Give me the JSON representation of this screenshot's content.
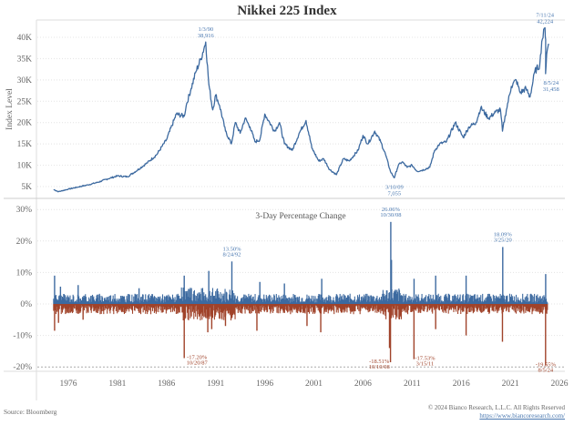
{
  "chart_data": [
    {
      "type": "line",
      "title": "Nikkei 225 Index",
      "ylabel": "Index Level",
      "xlabel": "",
      "xlim": [
        1973,
        2026
      ],
      "ylim": [
        2500,
        42500
      ],
      "y_ticks": [
        "5K",
        "10K",
        "15K",
        "20K",
        "25K",
        "30K",
        "35K",
        "40K"
      ],
      "y_tick_values": [
        5000,
        10000,
        15000,
        20000,
        25000,
        30000,
        35000,
        40000
      ],
      "grid": true,
      "color": "#3d6aa0",
      "series": [
        {
          "name": "Nikkei 225",
          "x": [
            1974.5,
            1975.0,
            1976.0,
            1977.0,
            1978.0,
            1979.0,
            1980.0,
            1981.0,
            1982.0,
            1983.0,
            1984.0,
            1985.0,
            1986.0,
            1987.0,
            1987.8,
            1988.0,
            1988.5,
            1989.0,
            1989.5,
            1989.99,
            1990.3,
            1990.7,
            1991.0,
            1991.4,
            1992.0,
            1992.6,
            1993.0,
            1993.5,
            1994.0,
            1994.5,
            1995.0,
            1995.5,
            1996.0,
            1996.5,
            1997.0,
            1997.5,
            1998.0,
            1998.8,
            1999.5,
            2000.2,
            2000.8,
            2001.5,
            2002.0,
            2002.6,
            2003.3,
            2004.0,
            2004.6,
            2005.5,
            2006.0,
            2006.5,
            2007.2,
            2007.8,
            2008.3,
            2008.8,
            2009.19,
            2009.6,
            2010.0,
            2010.5,
            2011.0,
            2011.5,
            2012.0,
            2012.8,
            2013.3,
            2013.8,
            2014.5,
            2015.4,
            2016.2,
            2016.8,
            2017.5,
            2018.0,
            2018.8,
            2019.5,
            2020.0,
            2020.2,
            2020.6,
            2021.1,
            2021.6,
            2022.0,
            2022.6,
            2023.0,
            2023.5,
            2024.0,
            2024.2,
            2024.53,
            2024.6,
            2024.59,
            2024.7,
            2024.9
          ],
          "values": [
            4300,
            3800,
            4400,
            4900,
            5400,
            6000,
            6800,
            7500,
            7300,
            8800,
            10500,
            12500,
            16000,
            22000,
            21500,
            24000,
            28000,
            32000,
            35000,
            38916,
            29000,
            23000,
            26500,
            24000,
            18000,
            15000,
            20000,
            17500,
            21000,
            19000,
            15500,
            16000,
            22000,
            20000,
            18000,
            20000,
            15000,
            13500,
            17500,
            20500,
            14000,
            11000,
            11500,
            9000,
            7800,
            11500,
            11000,
            13500,
            17000,
            15000,
            18000,
            15500,
            12500,
            8500,
            7055,
            10000,
            10800,
            9500,
            10000,
            8600,
            8800,
            9500,
            13500,
            15000,
            15500,
            20000,
            16500,
            19000,
            20000,
            23500,
            21000,
            22500,
            23000,
            18000,
            23000,
            28500,
            30000,
            27000,
            28000,
            26000,
            32000,
            33500,
            39000,
            42224,
            39500,
            31458,
            36000,
            38500
          ]
        }
      ],
      "annotations": [
        {
          "label": "1/3/90",
          "value": "38,916",
          "x": 1989.99,
          "y": 38916
        },
        {
          "label": "7/11/24",
          "value": "42,224",
          "x": 2024.53,
          "y": 42224
        },
        {
          "label": "8/5/24",
          "value": "31,458",
          "x": 2024.59,
          "y": 31458
        },
        {
          "label": "3/10/09",
          "value": "7,055",
          "x": 2009.19,
          "y": 7055
        }
      ]
    },
    {
      "type": "bar",
      "title": "3-Day Percentage Change",
      "xlabel": "",
      "ylabel": "",
      "xlim": [
        1973,
        2026
      ],
      "ylim": [
        -21,
        31
      ],
      "y_ticks": [
        "30%",
        "20%",
        "10%",
        "0%",
        "-10%",
        "-20%"
      ],
      "y_tick_values": [
        30,
        20,
        10,
        0,
        -10,
        -20
      ],
      "reference_line": -20,
      "grid": true,
      "positive_color": "#3d6aa0",
      "negative_color": "#a0432a",
      "x_ticks": [
        "1976",
        "1981",
        "1986",
        "1991",
        "1996",
        "2001",
        "2006",
        "2011",
        "2016",
        "2021",
        "2026"
      ],
      "x_tick_values": [
        1976,
        1981,
        1986,
        1991,
        1996,
        2001,
        2006,
        2011,
        2016,
        2021,
        2026
      ],
      "notable_values": [
        {
          "x": 1974.6,
          "y": 9.0
        },
        {
          "x": 1975.2,
          "y": 5.5
        },
        {
          "x": 1977.0,
          "y": 6.0
        },
        {
          "x": 1983.2,
          "y": 5.0
        },
        {
          "x": 1987.8,
          "y": 9.0
        },
        {
          "x": 1990.3,
          "y": 10.5
        },
        {
          "x": 1992.65,
          "y": 13.5
        },
        {
          "x": 1995.5,
          "y": 7.0
        },
        {
          "x": 1998.0,
          "y": 6.5
        },
        {
          "x": 2001.8,
          "y": 8.0
        },
        {
          "x": 2008.83,
          "y": 26.06
        },
        {
          "x": 2008.9,
          "y": 14.0
        },
        {
          "x": 2011.2,
          "y": 8.0
        },
        {
          "x": 2013.4,
          "y": 9.0
        },
        {
          "x": 2016.5,
          "y": 9.0
        },
        {
          "x": 2020.23,
          "y": 18.09
        },
        {
          "x": 2024.6,
          "y": 9.5
        },
        {
          "x": 1974.6,
          "y": -8.5
        },
        {
          "x": 1975.0,
          "y": -6.0
        },
        {
          "x": 1977.5,
          "y": -5.0
        },
        {
          "x": 1987.8,
          "y": -17.2
        },
        {
          "x": 1990.2,
          "y": -9.0
        },
        {
          "x": 1990.6,
          "y": -8.0
        },
        {
          "x": 1992.0,
          "y": -7.0
        },
        {
          "x": 1995.2,
          "y": -8.5
        },
        {
          "x": 2000.3,
          "y": -7.0
        },
        {
          "x": 2001.7,
          "y": -9.0
        },
        {
          "x": 2008.8,
          "y": -18.51
        },
        {
          "x": 2008.7,
          "y": -14.0
        },
        {
          "x": 2011.19,
          "y": -17.53
        },
        {
          "x": 2013.4,
          "y": -8.0
        },
        {
          "x": 2016.5,
          "y": -10.0
        },
        {
          "x": 2020.2,
          "y": -12.0
        },
        {
          "x": 2024.59,
          "y": -19.55
        }
      ],
      "annotations": [
        {
          "label": "26.06%",
          "date": "10/30/08",
          "x": 2008.83,
          "y": 26.06
        },
        {
          "label": "13.50%",
          "date": "8/24/92",
          "x": 1992.65,
          "y": 13.5
        },
        {
          "label": "18.09%",
          "date": "3/25/20",
          "x": 2020.23,
          "y": 18.09
        },
        {
          "label": "-17.20%",
          "date": "10/20/87",
          "x": 1987.8,
          "y": -17.2
        },
        {
          "label": "-18.51%",
          "date": "10/10/08",
          "x": 2008.77,
          "y": -18.51
        },
        {
          "label": "-17.53%",
          "date": "3/15/11",
          "x": 2011.2,
          "y": -17.53
        },
        {
          "label": "-19.55%",
          "date": "8/5/24",
          "x": 2024.59,
          "y": -19.55
        }
      ]
    }
  ],
  "footer": {
    "source": "Source: Bloomberg",
    "copyright": "© 2024 Bianco Research, L.L.C. All Rights Reserved",
    "url": "https://www.biancoresearch.com/"
  }
}
